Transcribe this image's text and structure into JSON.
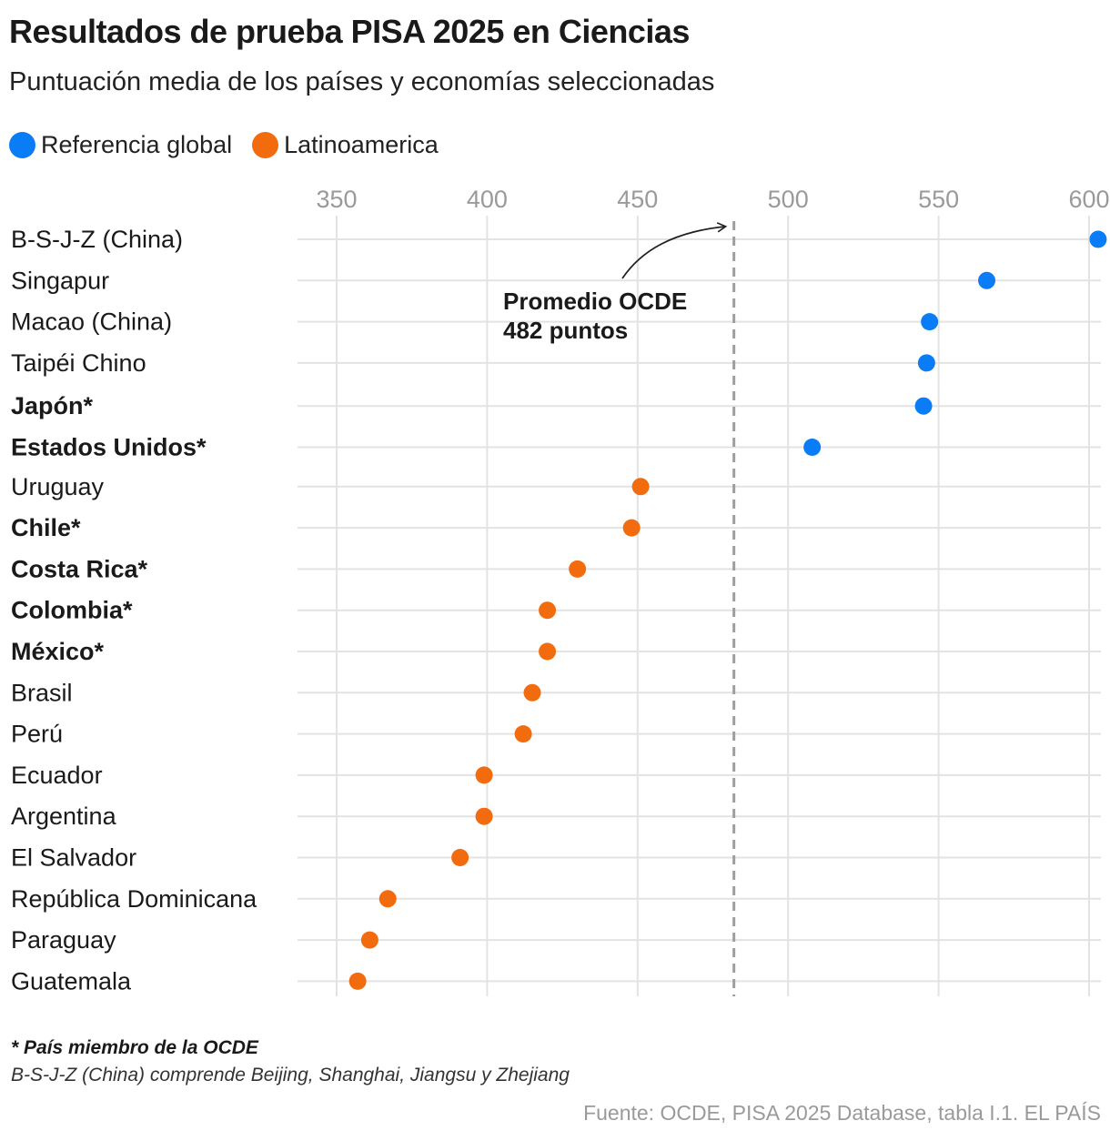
{
  "title": "Resultados de prueba PISA 2025 en Ciencias",
  "subtitle": "Puntuación media de los países y economías seleccionadas",
  "legend": [
    {
      "label": "Referencia global",
      "color": "#0a7cf5"
    },
    {
      "label": "Latinoamerica",
      "color": "#f26b0f"
    }
  ],
  "chart_data": {
    "type": "scatter",
    "orientation": "horizontal dot plot",
    "xlim": [
      337,
      607
    ],
    "x_ticks": [
      "350",
      "400",
      "450",
      "500",
      "550",
      "600"
    ],
    "grid": true,
    "legend_position": "top-left",
    "reference_line": {
      "value": 482,
      "label_line1": "Promedio OCDE",
      "label_line2": "482 puntos"
    },
    "series": [
      {
        "name": "Referencia global",
        "color": "#0a7cf5",
        "points": [
          {
            "label": "B-S-J-Z (China)",
            "value": 603,
            "oecd": false
          },
          {
            "label": "Singapur",
            "value": 566,
            "oecd": false
          },
          {
            "label": "Macao (China)",
            "value": 547,
            "oecd": false
          },
          {
            "label": "Taipéi Chino",
            "value": 546,
            "oecd": false
          },
          {
            "label": "Japón*",
            "value": 545,
            "oecd": true
          },
          {
            "label": "Estados Unidos*",
            "value": 508,
            "oecd": true
          }
        ]
      },
      {
        "name": "Latinoamerica",
        "color": "#f26b0f",
        "points": [
          {
            "label": "Uruguay",
            "value": 451,
            "oecd": false
          },
          {
            "label": "Chile*",
            "value": 448,
            "oecd": true
          },
          {
            "label": "Costa Rica*",
            "value": 430,
            "oecd": true
          },
          {
            "label": "Colombia*",
            "value": 420,
            "oecd": true
          },
          {
            "label": "México*",
            "value": 420,
            "oecd": true
          },
          {
            "label": "Brasil",
            "value": 415,
            "oecd": false
          },
          {
            "label": "Perú",
            "value": 412,
            "oecd": false
          },
          {
            "label": "Ecuador",
            "value": 399,
            "oecd": false
          },
          {
            "label": "Argentina",
            "value": 399,
            "oecd": false
          },
          {
            "label": "El Salvador",
            "value": 391,
            "oecd": false
          },
          {
            "label": "República Dominicana",
            "value": 367,
            "oecd": false
          },
          {
            "label": "Paraguay",
            "value": 361,
            "oecd": false
          },
          {
            "label": "Guatemala",
            "value": 357,
            "oecd": false
          }
        ]
      }
    ]
  },
  "notes": {
    "member": "* País miembro de la OCDE",
    "bsjz": "B-S-J-Z (China) comprende Beijing, Shanghai, Jiangsu y Zhejiang"
  },
  "source": "Fuente: OCDE, PISA 2025 Database, tabla I.1. EL PAÍS"
}
